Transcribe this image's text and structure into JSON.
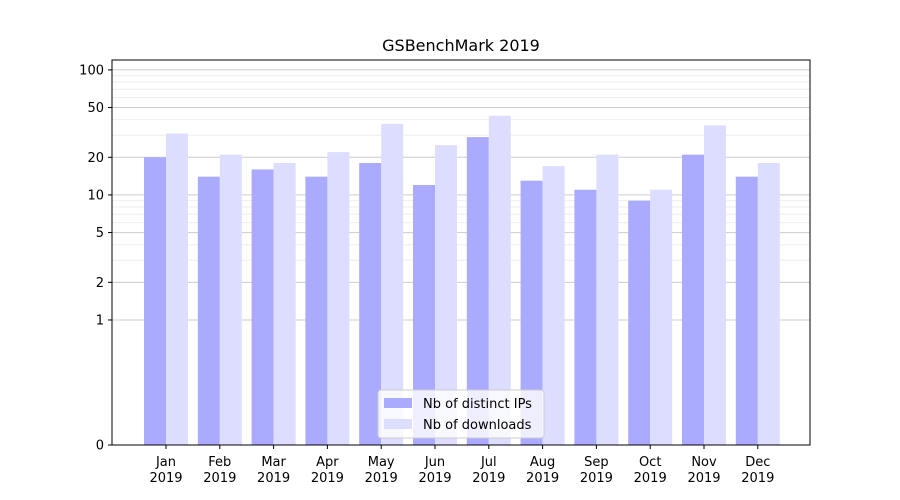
{
  "chart_data": {
    "type": "bar",
    "title": "GSBenchMark 2019",
    "xlabel": "",
    "ylabel": "",
    "y_scale": "symlog",
    "ylim": [
      0,
      120
    ],
    "y_ticks": [
      0,
      1,
      2,
      5,
      10,
      20,
      50,
      100
    ],
    "grid": "horizontal",
    "legend_position": "lower-center",
    "categories": [
      [
        "Jan",
        "2019"
      ],
      [
        "Feb",
        "2019"
      ],
      [
        "Mar",
        "2019"
      ],
      [
        "Apr",
        "2019"
      ],
      [
        "May",
        "2019"
      ],
      [
        "Jun",
        "2019"
      ],
      [
        "Jul",
        "2019"
      ],
      [
        "Aug",
        "2019"
      ],
      [
        "Sep",
        "2019"
      ],
      [
        "Oct",
        "2019"
      ],
      [
        "Nov",
        "2019"
      ],
      [
        "Dec",
        "2019"
      ]
    ],
    "series": [
      {
        "name": "Nb of distinct IPs",
        "color": "#aaaaff",
        "values": [
          20,
          14,
          16,
          14,
          18,
          12,
          29,
          13,
          11,
          9,
          21,
          14
        ]
      },
      {
        "name": "Nb of downloads",
        "color": "#ddddff",
        "values": [
          31,
          21,
          18,
          22,
          37,
          25,
          43,
          17,
          21,
          11,
          36,
          18
        ]
      }
    ]
  }
}
